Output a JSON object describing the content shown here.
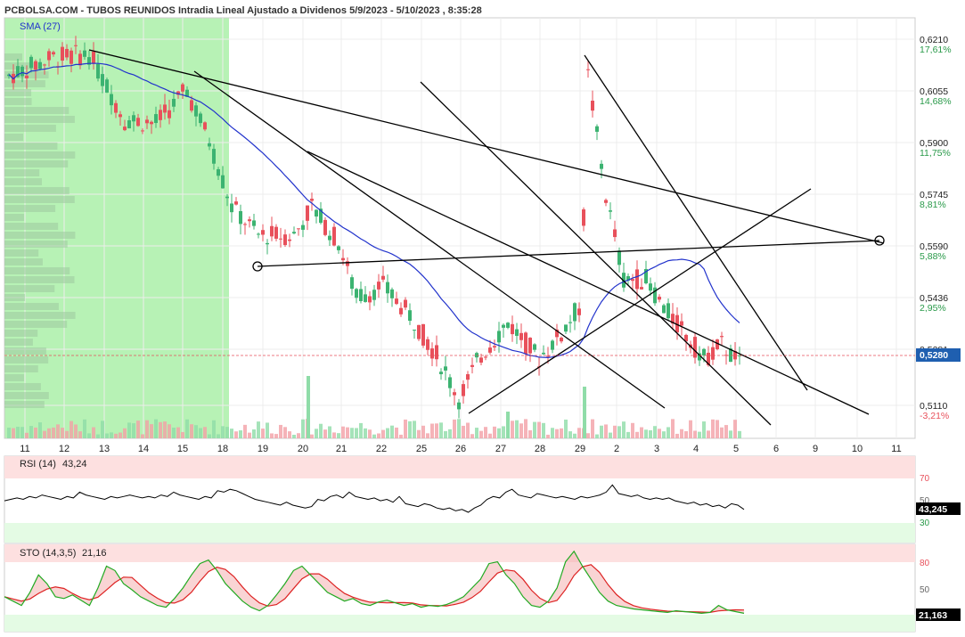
{
  "header": {
    "title": "PCBOLSA.COM - TUBOS REUNIDOS Intradia Lineal Ajustado a Dividenos 5/9/2023 - 5/10/2023 , 8:35:28",
    "sma_label": "SMA (27)"
  },
  "colors": {
    "up": "#3cb371",
    "down": "#e8505b",
    "sma": "#2233cc",
    "highlight": "#aaf0a8",
    "rsi_line": "#000000",
    "sto_k": "#22aa22",
    "sto_d": "#dd2222"
  },
  "price_axis": {
    "labels": [
      "0,6210",
      "0,6055",
      "0,5900",
      "0,5745",
      "0,5590",
      "0,5436",
      "0,5281",
      "0,5110"
    ],
    "pct_labels": [
      "17,61%",
      "14,68%",
      "11,75%",
      "8,81%",
      "5,88%",
      "2,95%",
      "-3,21%"
    ],
    "last_price": "0,5280"
  },
  "x_axis": {
    "labels": [
      "11",
      "12",
      "13",
      "14",
      "15",
      "18",
      "19",
      "20",
      "21",
      "22",
      "25",
      "26",
      "27",
      "28",
      "29",
      "2",
      "3",
      "4",
      "5",
      "6",
      "9",
      "10",
      "11"
    ]
  },
  "rsi": {
    "title": "RSI (14)",
    "value_text": "43,24",
    "last_value": "43,245",
    "levels": [
      "70",
      "50",
      "30"
    ]
  },
  "sto": {
    "title": "STO (14,3,5)",
    "value_text": "21,16",
    "last_value": "21,163",
    "levels": [
      "80",
      "50"
    ]
  },
  "chart_data": {
    "type": "candlestick",
    "ylim": [
      0.508,
      0.624
    ],
    "sma_period": 27,
    "rsi_series": [
      49,
      50,
      51,
      50,
      52,
      51,
      53,
      52,
      51,
      50,
      52,
      51,
      55,
      53,
      52,
      51,
      50,
      52,
      51,
      52,
      53,
      52,
      51,
      52,
      51,
      53,
      52,
      55,
      53,
      52,
      51,
      50,
      52,
      51,
      56,
      55,
      57,
      56,
      54,
      52,
      50,
      49,
      48,
      47,
      46,
      48,
      46,
      45,
      44,
      45,
      50,
      49,
      52,
      53,
      51,
      55,
      52,
      51,
      50,
      51,
      49,
      50,
      48,
      52,
      47,
      46,
      45,
      47,
      46,
      44,
      43,
      44,
      42,
      43,
      41,
      44,
      46,
      50,
      52,
      51,
      55,
      57,
      53,
      52,
      51,
      54,
      53,
      52,
      51,
      52,
      51,
      50,
      52,
      51,
      52,
      53,
      55,
      60,
      54,
      53,
      52,
      53,
      51,
      50,
      51,
      50,
      51,
      49,
      48,
      47,
      48,
      46,
      47,
      45,
      46,
      44,
      47,
      46,
      43
    ],
    "sto_k_series": [
      40,
      35,
      30,
      45,
      65,
      55,
      40,
      38,
      42,
      36,
      30,
      50,
      75,
      70,
      55,
      48,
      40,
      35,
      30,
      28,
      38,
      50,
      65,
      78,
      82,
      70,
      55,
      45,
      35,
      28,
      24,
      30,
      42,
      55,
      70,
      75,
      65,
      55,
      45,
      40,
      35,
      38,
      32,
      30,
      34,
      36,
      33,
      30,
      32,
      28,
      30,
      29,
      31,
      35,
      40,
      50,
      60,
      78,
      80,
      65,
      55,
      40,
      30,
      28,
      35,
      50,
      80,
      92,
      75,
      60,
      45,
      35,
      30,
      28,
      26,
      25,
      24,
      23,
      22,
      24,
      23,
      22,
      21,
      22,
      30,
      25,
      23,
      21
    ]
  }
}
